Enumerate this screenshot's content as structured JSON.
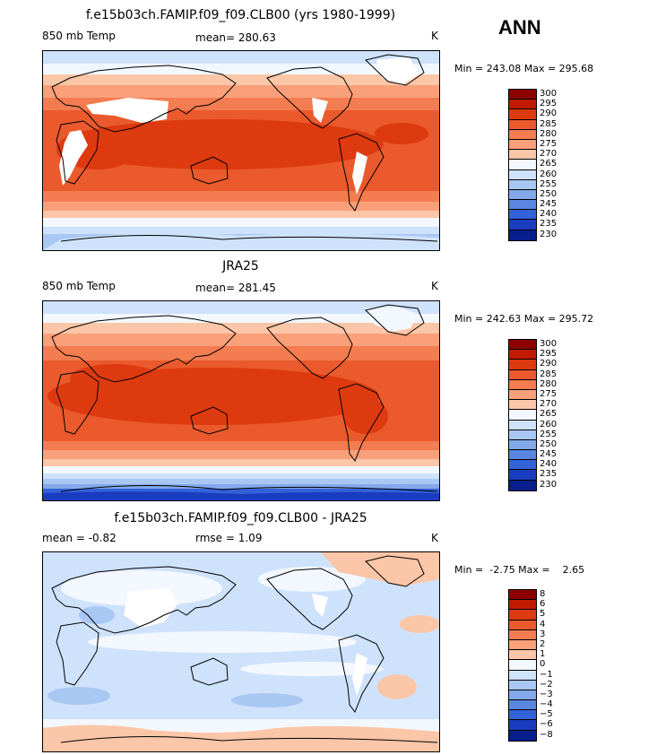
{
  "season": "ANN",
  "panels": [
    {
      "title": "f.e15b03ch.FAMIP.f09_f09.CLB00 (yrs 1980-1999)",
      "left_text": "850 mb Temp",
      "center_text": "mean= 280.63",
      "units": "K",
      "minmax": "Min = 243.08 Max = 295.68",
      "levels": [
        "300",
        "295",
        "290",
        "285",
        "280",
        "275",
        "270",
        "265",
        "260",
        "255",
        "250",
        "245",
        "240",
        "235",
        "230"
      ],
      "colors": [
        "#8c0000",
        "#c01a00",
        "#de3a10",
        "#ea5a2c",
        "#f37c50",
        "#f9a07a",
        "#fcc6a8",
        "#f3f8ff",
        "#cfe2fb",
        "#a9c7f3",
        "#83a9eb",
        "#5a86e0",
        "#3462d8",
        "#1a3cc0",
        "#071e8c"
      ],
      "mean_value": 280.63,
      "min_value": 243.08,
      "max_value": 295.68
    },
    {
      "title": "JRA25",
      "left_text": "850 mb Temp",
      "center_text": "mean= 281.45",
      "units": "K",
      "minmax": "Min = 242.63 Max = 295.72",
      "levels": [
        "300",
        "295",
        "290",
        "285",
        "280",
        "275",
        "270",
        "265",
        "260",
        "255",
        "250",
        "245",
        "240",
        "235",
        "230"
      ],
      "colors": [
        "#8c0000",
        "#c01a00",
        "#de3a10",
        "#ea5a2c",
        "#f37c50",
        "#f9a07a",
        "#fcc6a8",
        "#f3f8ff",
        "#cfe2fb",
        "#a9c7f3",
        "#83a9eb",
        "#5a86e0",
        "#3462d8",
        "#1a3cc0",
        "#071e8c"
      ],
      "mean_value": 281.45,
      "min_value": 242.63,
      "max_value": 295.72
    },
    {
      "title": "f.e15b03ch.FAMIP.f09_f09.CLB00 - JRA25",
      "left_text": "mean =   -0.82",
      "center_text": "rmse =    1.09",
      "units": "K",
      "minmax": "Min =  -2.75 Max =    2.65",
      "levels": [
        "8",
        "6",
        "5",
        "4",
        "3",
        "2",
        "1",
        "0",
        "−1",
        "−2",
        "−3",
        "−4",
        "−5",
        "−6",
        "−8"
      ],
      "colors": [
        "#8c0000",
        "#c01a00",
        "#de3a10",
        "#ea5a2c",
        "#f37c50",
        "#f9a07a",
        "#fcc6a8",
        "#f3f8ff",
        "#cfe2fb",
        "#a9c7f3",
        "#83a9eb",
        "#5a86e0",
        "#3462d8",
        "#1a3cc0",
        "#071e8c"
      ],
      "mean_value": -0.82,
      "rmse_value": 1.09,
      "min_value": -2.75,
      "max_value": 2.65
    }
  ]
}
